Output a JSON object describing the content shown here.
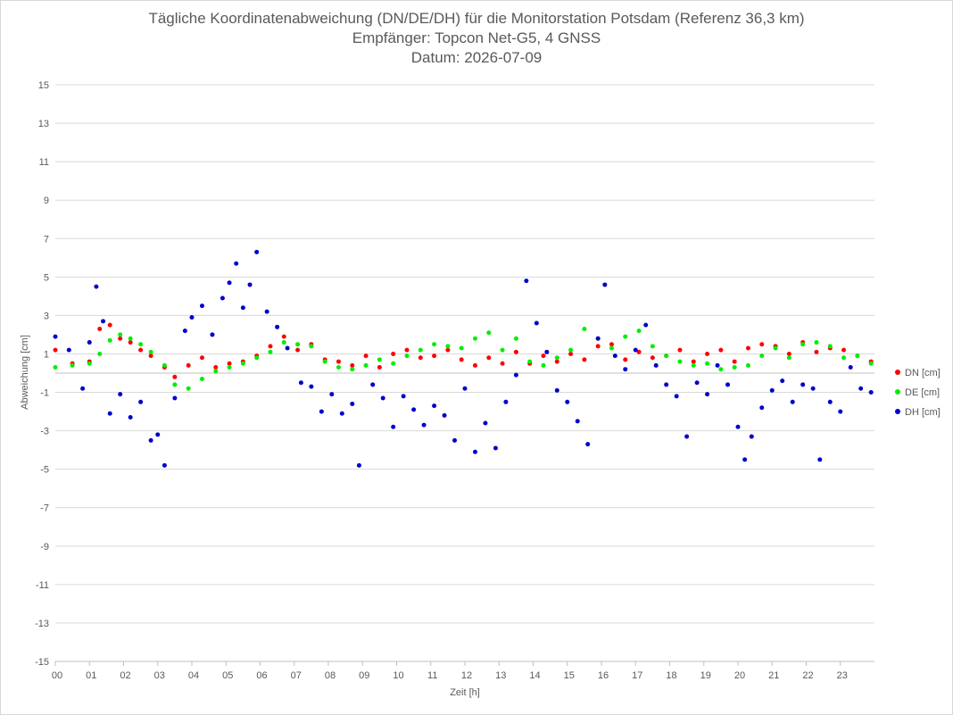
{
  "chart_data": {
    "type": "scatter",
    "title": "Tägliche Koordinatenabweichung (DN/DE/DH) für die Monitorstation Potsdam (Referenz 36,3 km)",
    "subtitle": "Empfänger: Topcon Net-G5, 4 GNSS",
    "date_line": "Datum: 2026-07-09",
    "xlabel": "Zeit [h]",
    "ylabel": "Abweichung [cm]",
    "xlim": [
      0,
      24
    ],
    "ylim": [
      -15,
      15
    ],
    "x_ticks": [
      "00",
      "01",
      "02",
      "03",
      "04",
      "05",
      "06",
      "07",
      "08",
      "09",
      "10",
      "11",
      "12",
      "13",
      "14",
      "15",
      "16",
      "17",
      "18",
      "19",
      "20",
      "21",
      "22",
      "23"
    ],
    "y_ticks": [
      15,
      13,
      11,
      9,
      7,
      5,
      3,
      1,
      -1,
      -3,
      -5,
      -7,
      -9,
      -11,
      -13,
      -15
    ],
    "grid": "horizontal",
    "legend_position": "right",
    "colors": {
      "DN": "#ff0000",
      "DE": "#00ee00",
      "DH": "#0000cc"
    },
    "series": [
      {
        "name": "DN [cm]",
        "color": "#ff0000",
        "x": [
          0.0,
          0.5,
          1.0,
          1.3,
          1.6,
          1.9,
          2.2,
          2.5,
          2.8,
          3.2,
          3.5,
          3.9,
          4.3,
          4.7,
          5.1,
          5.5,
          5.9,
          6.3,
          6.7,
          7.1,
          7.5,
          7.9,
          8.3,
          8.7,
          9.1,
          9.5,
          9.9,
          10.3,
          10.7,
          11.1,
          11.5,
          11.9,
          12.3,
          12.7,
          13.1,
          13.5,
          13.9,
          14.3,
          14.7,
          15.1,
          15.5,
          15.9,
          16.3,
          16.7,
          17.1,
          17.5,
          17.9,
          18.3,
          18.7,
          19.1,
          19.5,
          19.9,
          20.3,
          20.7,
          21.1,
          21.5,
          21.9,
          22.3,
          22.7,
          23.1,
          23.5,
          23.9
        ],
        "y": [
          1.2,
          0.5,
          0.6,
          2.3,
          2.5,
          1.8,
          1.6,
          1.2,
          0.9,
          0.3,
          -0.2,
          0.4,
          0.8,
          0.3,
          0.5,
          0.6,
          0.9,
          1.4,
          1.9,
          1.2,
          1.5,
          0.7,
          0.6,
          0.4,
          0.9,
          0.3,
          1.0,
          1.2,
          0.8,
          0.9,
          1.2,
          0.7,
          0.4,
          0.8,
          0.5,
          1.1,
          0.5,
          0.9,
          0.6,
          1.0,
          0.7,
          1.4,
          1.5,
          0.7,
          1.1,
          0.8,
          0.9,
          1.2,
          0.6,
          1.0,
          1.2,
          0.6,
          1.3,
          1.5,
          1.4,
          1.0,
          1.6,
          1.1,
          1.3,
          1.2,
          0.9,
          0.6
        ]
      },
      {
        "name": "DE [cm]",
        "color": "#00ee00",
        "x": [
          0.0,
          0.5,
          1.0,
          1.3,
          1.6,
          1.9,
          2.2,
          2.5,
          2.8,
          3.2,
          3.5,
          3.9,
          4.3,
          4.7,
          5.1,
          5.5,
          5.9,
          6.3,
          6.7,
          7.1,
          7.5,
          7.9,
          8.3,
          8.7,
          9.1,
          9.5,
          9.9,
          10.3,
          10.7,
          11.1,
          11.5,
          11.9,
          12.3,
          12.7,
          13.1,
          13.5,
          13.9,
          14.3,
          14.7,
          15.1,
          15.5,
          15.9,
          16.3,
          16.7,
          17.1,
          17.5,
          17.9,
          18.3,
          18.7,
          19.1,
          19.5,
          19.9,
          20.3,
          20.7,
          21.1,
          21.5,
          21.9,
          22.3,
          22.7,
          23.1,
          23.5,
          23.9
        ],
        "y": [
          0.3,
          0.4,
          0.5,
          1.0,
          1.7,
          2.0,
          1.8,
          1.5,
          1.1,
          0.4,
          -0.6,
          -0.8,
          -0.3,
          0.1,
          0.3,
          0.5,
          0.8,
          1.1,
          1.6,
          1.5,
          1.4,
          0.6,
          0.3,
          0.2,
          0.4,
          0.7,
          0.5,
          0.9,
          1.2,
          1.5,
          1.4,
          1.3,
          1.8,
          2.1,
          1.2,
          1.8,
          0.6,
          0.4,
          0.8,
          1.2,
          2.3,
          1.8,
          1.3,
          1.9,
          2.2,
          1.4,
          0.9,
          0.6,
          0.4,
          0.5,
          0.2,
          0.3,
          0.4,
          0.9,
          1.3,
          0.8,
          1.5,
          1.6,
          1.4,
          0.8,
          0.9,
          0.5
        ]
      },
      {
        "name": "DH [cm]",
        "color": "#0000cc",
        "x": [
          0.0,
          0.4,
          0.8,
          1.0,
          1.2,
          1.4,
          1.6,
          1.9,
          2.2,
          2.5,
          2.8,
          3.0,
          3.2,
          3.5,
          3.8,
          4.0,
          4.3,
          4.6,
          4.9,
          5.1,
          5.3,
          5.5,
          5.7,
          5.9,
          6.2,
          6.5,
          6.8,
          7.2,
          7.5,
          7.8,
          8.1,
          8.4,
          8.7,
          8.9,
          9.3,
          9.6,
          9.9,
          10.2,
          10.5,
          10.8,
          11.1,
          11.4,
          11.7,
          12.0,
          12.3,
          12.6,
          12.9,
          13.2,
          13.5,
          13.8,
          14.1,
          14.4,
          14.7,
          15.0,
          15.3,
          15.6,
          15.9,
          16.1,
          16.4,
          16.7,
          17.0,
          17.3,
          17.6,
          17.9,
          18.2,
          18.5,
          18.8,
          19.1,
          19.4,
          19.7,
          20.0,
          20.2,
          20.4,
          20.7,
          21.0,
          21.3,
          21.6,
          21.9,
          22.2,
          22.4,
          22.7,
          23.0,
          23.3,
          23.6,
          23.9
        ],
        "y": [
          1.9,
          1.2,
          -0.8,
          1.6,
          4.5,
          2.7,
          -2.1,
          -1.1,
          -2.3,
          -1.5,
          -3.5,
          -3.2,
          -4.8,
          -1.3,
          2.2,
          2.9,
          3.5,
          2.0,
          3.9,
          4.7,
          5.7,
          3.4,
          4.6,
          6.3,
          3.2,
          2.4,
          1.3,
          -0.5,
          -0.7,
          -2.0,
          -1.1,
          -2.1,
          -1.6,
          -4.8,
          -0.6,
          -1.3,
          -2.8,
          -1.2,
          -1.9,
          -2.7,
          -1.7,
          -2.2,
          -3.5,
          -0.8,
          -4.1,
          -2.6,
          -3.9,
          -1.5,
          -0.1,
          4.8,
          2.6,
          1.1,
          -0.9,
          -1.5,
          -2.5,
          -3.7,
          1.8,
          4.6,
          0.9,
          0.2,
          1.2,
          2.5,
          0.4,
          -0.6,
          -1.2,
          -3.3,
          -0.5,
          -1.1,
          0.4,
          -0.6,
          -2.8,
          -4.5,
          -3.3,
          -1.8,
          -0.9,
          -0.4,
          -1.5,
          -0.6,
          -0.8,
          -4.5,
          -1.5,
          -2.0,
          0.3,
          -0.8,
          -1.0
        ]
      }
    ]
  }
}
